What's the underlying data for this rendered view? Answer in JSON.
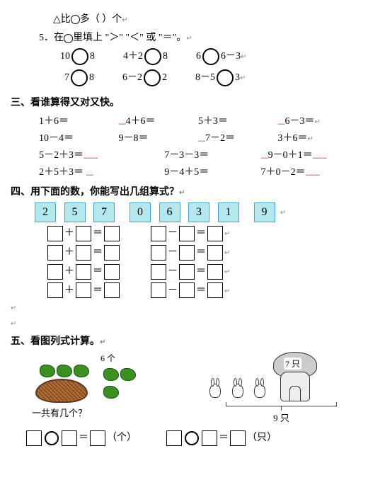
{
  "topline": {
    "tri": "△",
    "text1": "比",
    "text2": "多（   ）个"
  },
  "q5": {
    "prefix": "5．在",
    "mid": "里填上 \"＞\" \"＜\" 或 \"＝\"。",
    "r1a_l": "10",
    "r1a_r": "8",
    "r1b_l": "4＋2",
    "r1b_r": "8",
    "r1c_l": "6",
    "r1c_r": "6－3",
    "r2a_l": "7",
    "r2a_r": "8",
    "r2b_l": "6－2",
    "r2b_r": "2",
    "r2c_l": "8－5",
    "r2c_r": "3"
  },
  "sec3": {
    "title": "三、看谁算得又对又快。",
    "row1": [
      "1＋6＝",
      "4＋6＝",
      "5＋3＝",
      "6－3＝"
    ],
    "row2": [
      "10－4＝",
      "9－8＝",
      "7－2＝",
      "3＋6＝"
    ],
    "row3": [
      "5－2＋3＝",
      "7－3－3＝",
      "9－0＋1＝"
    ],
    "row4": [
      "2＋5＋3＝",
      "9－4＋5＝",
      "7＋0－2＝"
    ]
  },
  "sec4": {
    "title": "四、用下面的数，你能写出几组算式？",
    "nums": [
      "2",
      "5",
      "7",
      "0",
      "6",
      "3",
      "1",
      "9"
    ],
    "ops_left": "＋",
    "ops_right": "－",
    "eq": "＝"
  },
  "sec5": {
    "title": "五、看图列式计算。",
    "left_top": "6 个",
    "left_q": "一共有几个？",
    "left_unit": "（个）",
    "right_house": "7 只",
    "right_count": "9 只",
    "right_unit": "（只）",
    "eq": "＝"
  }
}
